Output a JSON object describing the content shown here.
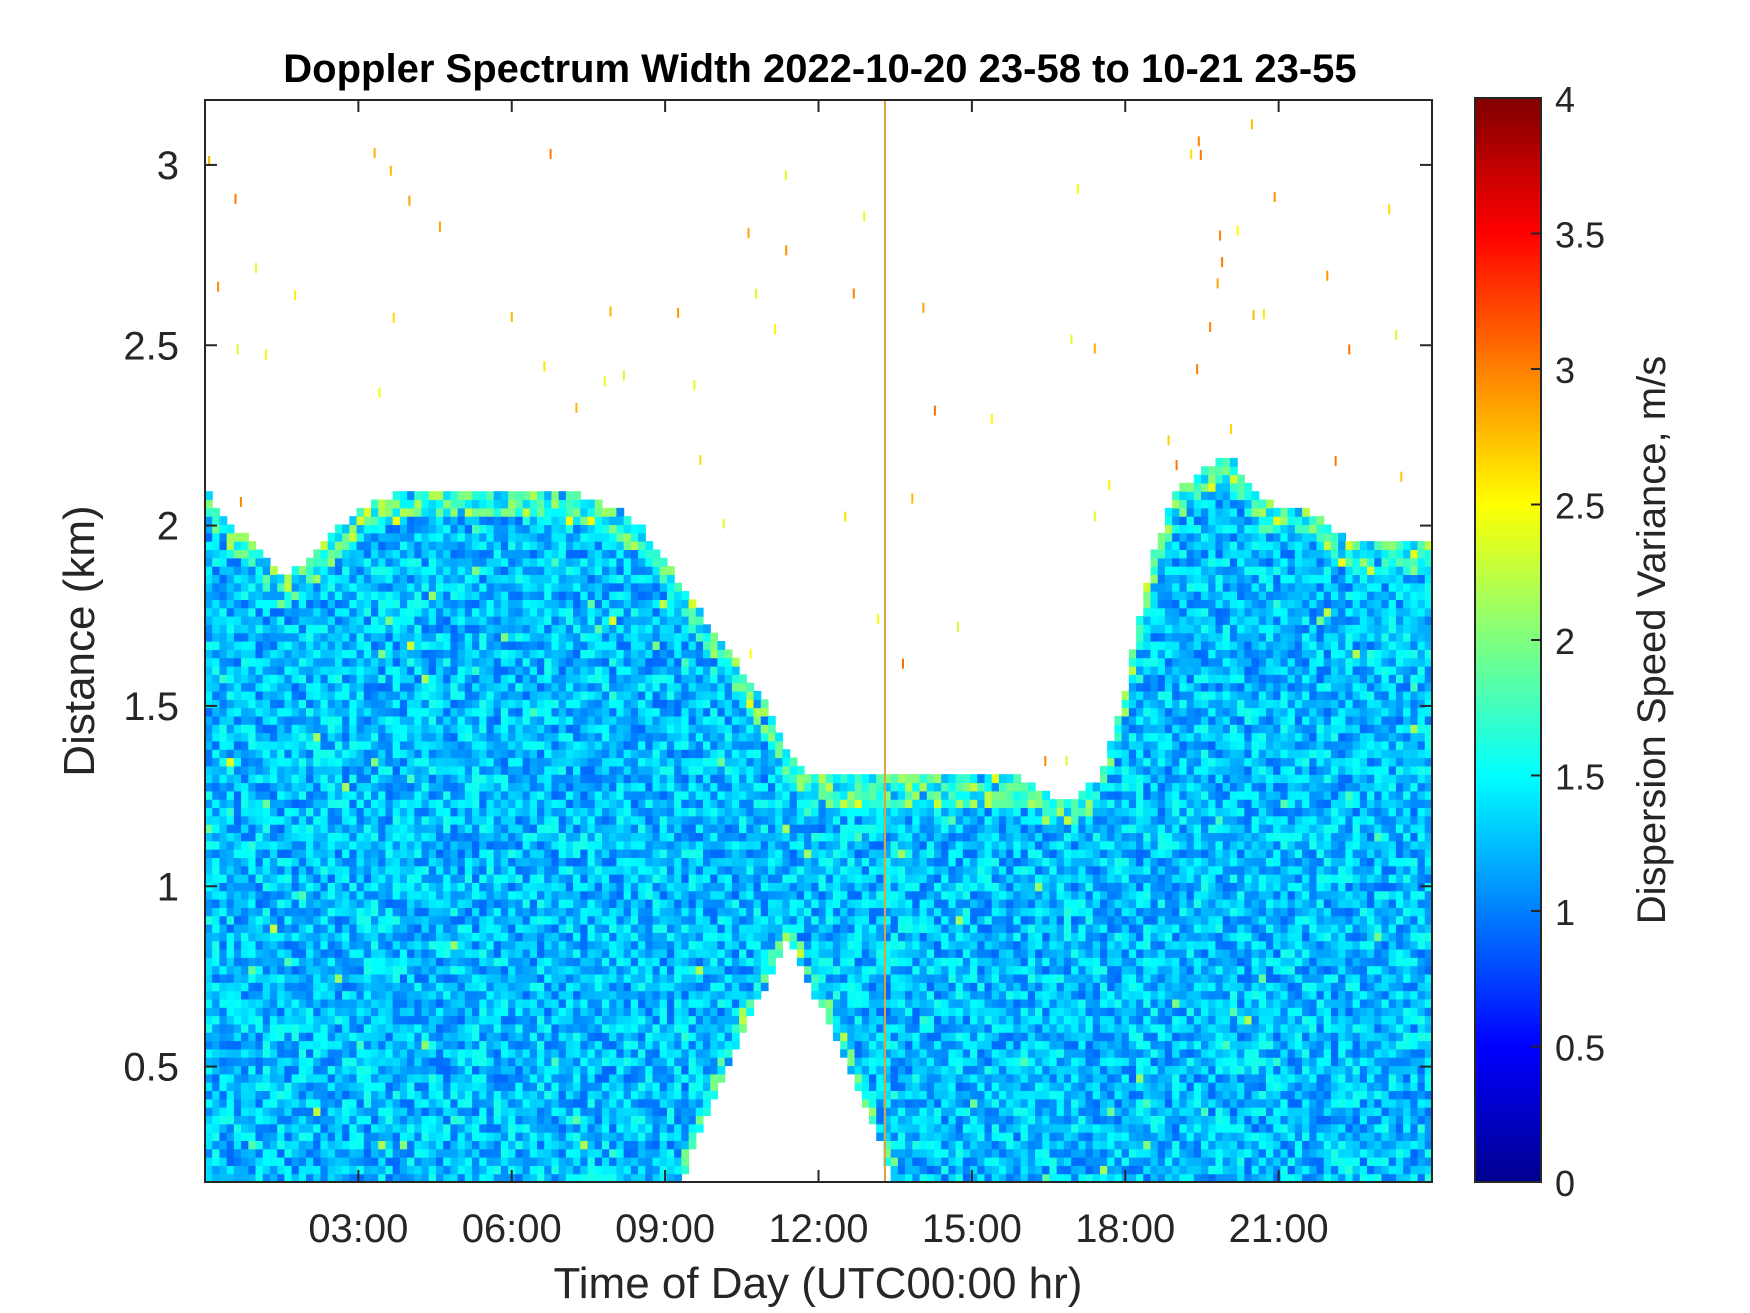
{
  "chart_data": {
    "type": "heatmap",
    "title": "Doppler Spectrum Width 2022-10-20 23-58 to 10-21 23-55",
    "xlabel": "Time of Day (UTC00:00 hr)",
    "ylabel": "Distance (km)",
    "xlim": [
      0,
      24
    ],
    "ylim": [
      0.18,
      3.18
    ],
    "x_ticks": [
      {
        "value": 3,
        "label": "03:00"
      },
      {
        "value": 6,
        "label": "06:00"
      },
      {
        "value": 9,
        "label": "09:00"
      },
      {
        "value": 12,
        "label": "12:00"
      },
      {
        "value": 15,
        "label": "15:00"
      },
      {
        "value": 18,
        "label": "18:00"
      },
      {
        "value": 21,
        "label": "21:00"
      }
    ],
    "y_ticks": [
      {
        "value": 0.5,
        "label": "0.5"
      },
      {
        "value": 1,
        "label": "1"
      },
      {
        "value": 1.5,
        "label": "1.5"
      },
      {
        "value": 2,
        "label": "2"
      },
      {
        "value": 2.5,
        "label": "2.5"
      },
      {
        "value": 3,
        "label": "3"
      }
    ],
    "colorbar": {
      "label": "Dispersion Speed Variance, m/s",
      "colormap": "jet",
      "clim": [
        0,
        4
      ],
      "ticks": [
        {
          "value": 0,
          "label": "0"
        },
        {
          "value": 0.5,
          "label": "0.5"
        },
        {
          "value": 1,
          "label": "1"
        },
        {
          "value": 1.5,
          "label": "1.5"
        },
        {
          "value": 2,
          "label": "2"
        },
        {
          "value": 2.5,
          "label": "2.5"
        },
        {
          "value": 3,
          "label": "3"
        },
        {
          "value": 3.5,
          "label": "3.5"
        },
        {
          "value": 4,
          "label": "4"
        }
      ]
    },
    "typical_value": 1.25,
    "echo_top_profile": {
      "time_hr": [
        0.0,
        0.5,
        1.0,
        1.5,
        2.0,
        3.0,
        4.0,
        5.0,
        6.0,
        7.0,
        8.0,
        8.5,
        9.0,
        9.5,
        10.0,
        10.5,
        11.0,
        11.5,
        12.0,
        12.5,
        13.0,
        13.5,
        14.0,
        14.5,
        15.0,
        15.5,
        16.0,
        16.5,
        17.0,
        17.5,
        18.0,
        18.5,
        19.0,
        19.5,
        20.0,
        20.5,
        21.0,
        21.5,
        22.0,
        22.5,
        23.0,
        24.0
      ],
      "top_km": [
        2.1,
        2.0,
        1.95,
        1.85,
        1.9,
        2.05,
        2.1,
        2.1,
        2.1,
        2.1,
        2.05,
        2.0,
        1.9,
        1.8,
        1.7,
        1.6,
        1.5,
        1.35,
        1.3,
        1.3,
        1.3,
        1.3,
        1.3,
        1.3,
        1.3,
        1.3,
        1.3,
        1.25,
        1.25,
        1.3,
        1.55,
        1.9,
        2.1,
        2.15,
        2.2,
        2.1,
        2.05,
        2.05,
        2.0,
        1.95,
        1.95,
        1.95
      ]
    },
    "echo_gaps": [
      {
        "time_hr": [
          9.3,
          13.5
        ],
        "bottom_km": [
          0.18,
          0.55,
          0.85,
          0.55,
          0.18
        ]
      }
    ],
    "vertical_line_hr": 13.3
  }
}
